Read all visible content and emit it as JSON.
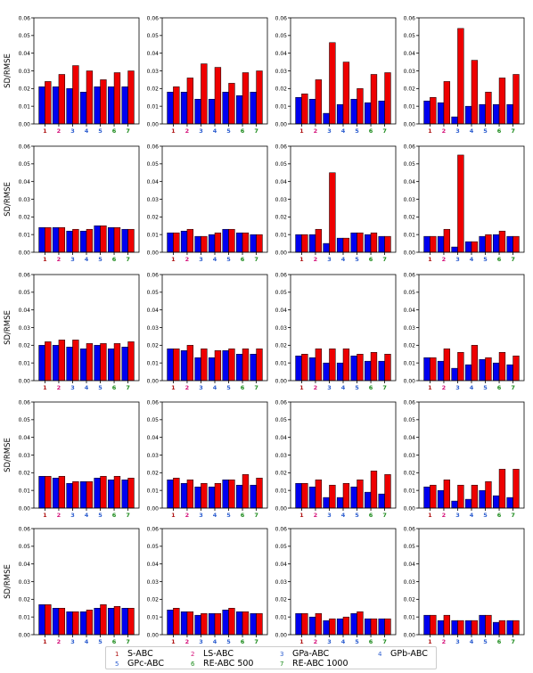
{
  "chart_data": {
    "type": "bar",
    "layout": "5x4-grid",
    "ylabel": "SD/RMSE",
    "ylim": [
      0,
      0.06
    ],
    "yticks": [
      "0.00",
      "0.01",
      "0.02",
      "0.03",
      "0.04",
      "0.05",
      "0.06"
    ],
    "categories": [
      "1",
      "2",
      "3",
      "4",
      "5",
      "6",
      "7"
    ],
    "category_colors": [
      "#b01515",
      "#d6147c",
      "#2e5fd0",
      "#2e5fd0",
      "#2e5fd0",
      "#1a8a1a",
      "#1a8a1a"
    ],
    "series_colors": [
      "#0000ee",
      "#ee0000"
    ],
    "legend": [
      {
        "num": "1",
        "label": "S-ABC",
        "color": "#b01515"
      },
      {
        "num": "2",
        "label": "LS-ABC",
        "color": "#d6147c"
      },
      {
        "num": "3",
        "label": "GPa-ABC",
        "color": "#2e5fd0"
      },
      {
        "num": "4",
        "label": "GPb-ABC",
        "color": "#2e5fd0"
      },
      {
        "num": "5",
        "label": "GPc-ABC",
        "color": "#2e5fd0"
      },
      {
        "num": "6",
        "label": "RE-ABC 500",
        "color": "#1a8a1a"
      },
      {
        "num": "7",
        "label": "RE-ABC 1000",
        "color": "#1a8a1a"
      }
    ],
    "panels": [
      [
        {
          "blue": [
            0.021,
            0.021,
            0.02,
            0.018,
            0.021,
            0.021,
            0.021
          ],
          "red": [
            0.024,
            0.028,
            0.033,
            0.03,
            0.025,
            0.029,
            0.03
          ]
        },
        {
          "blue": [
            0.018,
            0.018,
            0.014,
            0.014,
            0.018,
            0.016,
            0.018
          ],
          "red": [
            0.021,
            0.026,
            0.034,
            0.032,
            0.023,
            0.029,
            0.03
          ]
        },
        {
          "blue": [
            0.015,
            0.014,
            0.006,
            0.011,
            0.014,
            0.012,
            0.013
          ],
          "red": [
            0.017,
            0.025,
            0.046,
            0.035,
            0.02,
            0.028,
            0.029
          ]
        },
        {
          "blue": [
            0.013,
            0.012,
            0.004,
            0.01,
            0.011,
            0.011,
            0.011
          ],
          "red": [
            0.015,
            0.024,
            0.054,
            0.036,
            0.018,
            0.026,
            0.028
          ]
        }
      ],
      [
        {
          "blue": [
            0.014,
            0.014,
            0.012,
            0.012,
            0.015,
            0.014,
            0.013
          ],
          "red": [
            0.014,
            0.014,
            0.013,
            0.013,
            0.015,
            0.014,
            0.013
          ]
        },
        {
          "blue": [
            0.011,
            0.012,
            0.009,
            0.01,
            0.013,
            0.011,
            0.01
          ],
          "red": [
            0.011,
            0.013,
            0.009,
            0.011,
            0.013,
            0.011,
            0.01
          ]
        },
        {
          "blue": [
            0.01,
            0.01,
            0.005,
            0.008,
            0.011,
            0.01,
            0.009
          ],
          "red": [
            0.01,
            0.013,
            0.045,
            0.008,
            0.011,
            0.011,
            0.009
          ]
        },
        {
          "blue": [
            0.009,
            0.009,
            0.003,
            0.006,
            0.009,
            0.01,
            0.009
          ],
          "red": [
            0.009,
            0.013,
            0.055,
            0.006,
            0.01,
            0.012,
            0.009
          ]
        }
      ],
      [
        {
          "blue": [
            0.02,
            0.02,
            0.019,
            0.018,
            0.02,
            0.018,
            0.019
          ],
          "red": [
            0.022,
            0.023,
            0.023,
            0.021,
            0.021,
            0.021,
            0.022
          ]
        },
        {
          "blue": [
            0.018,
            0.017,
            0.013,
            0.013,
            0.017,
            0.015,
            0.015
          ],
          "red": [
            0.018,
            0.02,
            0.018,
            0.017,
            0.018,
            0.018,
            0.018
          ]
        },
        {
          "blue": [
            0.014,
            0.013,
            0.01,
            0.01,
            0.014,
            0.011,
            0.011
          ],
          "red": [
            0.015,
            0.018,
            0.018,
            0.018,
            0.015,
            0.016,
            0.015
          ]
        },
        {
          "blue": [
            0.013,
            0.011,
            0.007,
            0.009,
            0.012,
            0.01,
            0.009
          ],
          "red": [
            0.013,
            0.018,
            0.016,
            0.02,
            0.013,
            0.016,
            0.014
          ]
        }
      ],
      [
        {
          "blue": [
            0.018,
            0.017,
            0.014,
            0.015,
            0.017,
            0.016,
            0.016
          ],
          "red": [
            0.018,
            0.018,
            0.015,
            0.015,
            0.018,
            0.018,
            0.017
          ]
        },
        {
          "blue": [
            0.016,
            0.014,
            0.012,
            0.012,
            0.016,
            0.013,
            0.013
          ],
          "red": [
            0.017,
            0.016,
            0.014,
            0.014,
            0.016,
            0.019,
            0.017
          ]
        },
        {
          "blue": [
            0.014,
            0.012,
            0.006,
            0.006,
            0.012,
            0.009,
            0.008
          ],
          "red": [
            0.014,
            0.016,
            0.013,
            0.014,
            0.016,
            0.021,
            0.019
          ]
        },
        {
          "blue": [
            0.012,
            0.01,
            0.004,
            0.005,
            0.01,
            0.007,
            0.006
          ],
          "red": [
            0.013,
            0.016,
            0.013,
            0.013,
            0.015,
            0.022,
            0.022
          ]
        }
      ],
      [
        {
          "blue": [
            0.017,
            0.015,
            0.013,
            0.013,
            0.015,
            0.015,
            0.015
          ],
          "red": [
            0.017,
            0.015,
            0.013,
            0.014,
            0.017,
            0.016,
            0.015
          ]
        },
        {
          "blue": [
            0.014,
            0.013,
            0.011,
            0.012,
            0.014,
            0.013,
            0.012
          ],
          "red": [
            0.015,
            0.013,
            0.012,
            0.012,
            0.015,
            0.013,
            0.012
          ]
        },
        {
          "blue": [
            0.012,
            0.01,
            0.008,
            0.009,
            0.012,
            0.009,
            0.009
          ],
          "red": [
            0.012,
            0.012,
            0.009,
            0.01,
            0.013,
            0.009,
            0.009
          ]
        },
        {
          "blue": [
            0.011,
            0.008,
            0.008,
            0.008,
            0.011,
            0.007,
            0.008
          ],
          "red": [
            0.011,
            0.011,
            0.008,
            0.008,
            0.011,
            0.008,
            0.008
          ]
        }
      ]
    ]
  }
}
